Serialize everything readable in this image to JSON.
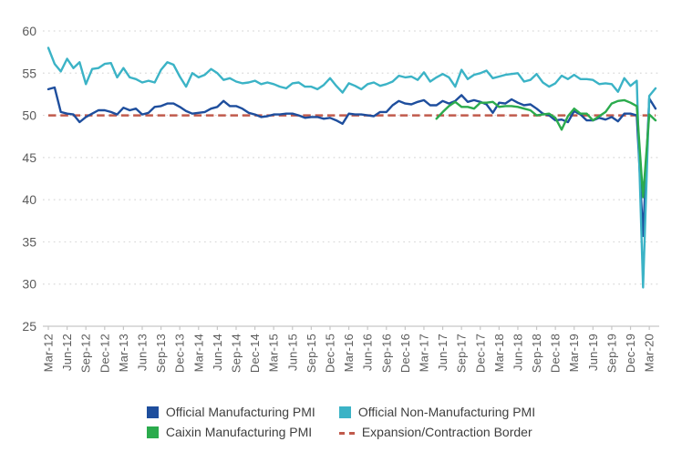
{
  "chart_data": {
    "type": "line",
    "grid": "dotted-horizontal",
    "legend_position": "bottom",
    "y_axis": {
      "min": 25,
      "max": 60,
      "step": 5,
      "ticks": [
        25,
        30,
        35,
        40,
        45,
        50,
        55,
        60
      ]
    },
    "x_tick_labels": [
      "Mar-12",
      "Jun-12",
      "Sep-12",
      "Dec-12",
      "Mar-13",
      "Jun-13",
      "Sep-13",
      "Dec-13",
      "Mar-14",
      "Jun-14",
      "Sep-14",
      "Dec-14",
      "Mar-15",
      "Jun-15",
      "Sep-15",
      "Dec-15",
      "Mar-16",
      "Jun-16",
      "Sep-16",
      "Dec-16",
      "Mar-17",
      "Jun-17",
      "Sep-17",
      "Dec-17",
      "Mar-18",
      "Jun-18",
      "Sep-18",
      "Dec-18",
      "Mar-19",
      "Jun-19",
      "Sep-19",
      "Dec-19",
      "Mar-20"
    ],
    "x_months_per_tick": 3,
    "border_line": {
      "label": "Expansion/Contraction Border",
      "value": 50,
      "color": "#C05A4C"
    },
    "series": [
      {
        "name": "Official Manufacturing PMI",
        "color": "#1E4E9D",
        "values": [
          53.1,
          53.3,
          50.4,
          50.2,
          50.1,
          49.2,
          49.8,
          50.2,
          50.6,
          50.6,
          50.4,
          50.1,
          50.9,
          50.6,
          50.8,
          50.1,
          50.3,
          51.0,
          51.1,
          51.4,
          51.4,
          51.0,
          50.5,
          50.2,
          50.3,
          50.4,
          50.8,
          51.0,
          51.7,
          51.1,
          51.1,
          50.8,
          50.3,
          50.1,
          49.8,
          49.9,
          50.1,
          50.1,
          50.2,
          50.2,
          50.0,
          49.7,
          49.8,
          49.8,
          49.6,
          49.7,
          49.4,
          49.0,
          50.2,
          50.1,
          50.1,
          50.0,
          49.9,
          50.4,
          50.4,
          51.2,
          51.7,
          51.4,
          51.3,
          51.6,
          51.8,
          51.2,
          51.2,
          51.7,
          51.4,
          51.7,
          52.4,
          51.6,
          51.8,
          51.6,
          51.3,
          50.3,
          51.5,
          51.4,
          51.9,
          51.5,
          51.2,
          51.3,
          50.8,
          50.2,
          50.0,
          49.4,
          49.5,
          49.2,
          50.5,
          50.1,
          49.4,
          49.4,
          49.7,
          49.5,
          49.8,
          49.3,
          50.2,
          50.2,
          50.0,
          35.7,
          52.0,
          50.8
        ]
      },
      {
        "name": "Official Non-Manufacturing PMI",
        "color": "#3BB3C6",
        "values": [
          58.0,
          56.1,
          55.2,
          56.7,
          55.6,
          56.3,
          53.7,
          55.5,
          55.6,
          56.1,
          56.2,
          54.5,
          55.6,
          54.5,
          54.3,
          53.9,
          54.1,
          53.9,
          55.4,
          56.3,
          56.0,
          54.6,
          53.4,
          55.0,
          54.5,
          54.8,
          55.5,
          55.0,
          54.2,
          54.4,
          54.0,
          53.8,
          53.9,
          54.1,
          53.7,
          53.9,
          53.7,
          53.4,
          53.2,
          53.8,
          53.9,
          53.4,
          53.4,
          53.1,
          53.6,
          54.4,
          53.5,
          52.7,
          53.8,
          53.5,
          53.1,
          53.7,
          53.9,
          53.5,
          53.7,
          54.0,
          54.7,
          54.5,
          54.6,
          54.2,
          55.1,
          54.0,
          54.5,
          54.9,
          54.5,
          53.4,
          55.4,
          54.3,
          54.8,
          55.0,
          55.3,
          54.4,
          54.6,
          54.8,
          54.9,
          55.0,
          54.0,
          54.2,
          54.9,
          53.9,
          53.4,
          53.8,
          54.7,
          54.3,
          54.8,
          54.3,
          54.3,
          54.2,
          53.7,
          53.8,
          53.7,
          52.8,
          54.4,
          53.5,
          54.1,
          29.6,
          52.3,
          53.2
        ]
      },
      {
        "name": "Caixin Manufacturing PMI",
        "color": "#2BAB4D",
        "values": [
          null,
          null,
          null,
          null,
          null,
          null,
          null,
          null,
          null,
          null,
          null,
          null,
          null,
          null,
          null,
          null,
          null,
          null,
          null,
          null,
          null,
          null,
          null,
          null,
          null,
          null,
          null,
          null,
          null,
          null,
          null,
          null,
          null,
          null,
          null,
          null,
          null,
          null,
          null,
          null,
          null,
          null,
          null,
          null,
          null,
          null,
          null,
          null,
          null,
          null,
          null,
          null,
          null,
          null,
          null,
          null,
          null,
          null,
          null,
          null,
          null,
          null,
          49.6,
          50.4,
          51.1,
          51.6,
          51.0,
          51.0,
          50.8,
          51.5,
          51.5,
          51.6,
          51.0,
          51.1,
          51.1,
          51.0,
          50.8,
          50.6,
          50.0,
          50.1,
          50.2,
          49.7,
          48.3,
          49.9,
          50.8,
          50.2,
          50.2,
          49.4,
          49.9,
          50.4,
          51.4,
          51.7,
          51.8,
          51.5,
          51.1,
          40.3,
          50.1,
          49.4
        ]
      }
    ],
    "legend": [
      {
        "label": "Official Manufacturing PMI",
        "color": "#1E4E9D",
        "marker": "square"
      },
      {
        "label": "Official Non-Manufacturing PMI",
        "color": "#3BB3C6",
        "marker": "square"
      },
      {
        "label": "Caixin Manufacturing PMI",
        "color": "#2BAB4D",
        "marker": "square"
      },
      {
        "label": "Expansion/Contraction Border",
        "color": "#C05A4C",
        "marker": "dash"
      }
    ]
  }
}
